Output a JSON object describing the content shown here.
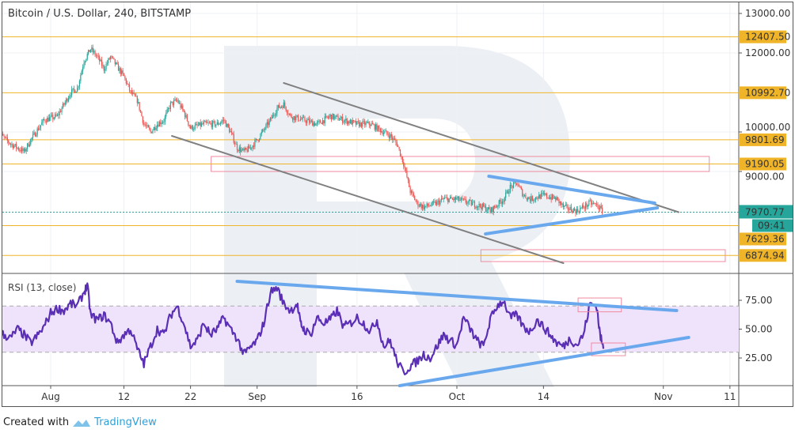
{
  "chart_data": {
    "type": "candlestick",
    "title": "Bitcoin / U.S. Dollar, 240, BITSTAMP",
    "price_axis": {
      "ticks": [
        "13000.00",
        "12000.00",
        "10000.00",
        "9000.00"
      ],
      "tick_values": [
        13000,
        12000,
        10000,
        9000
      ],
      "range": [
        6600,
        13300
      ]
    },
    "time_axis": {
      "ticks": [
        {
          "label": "Aug",
          "day": 0
        },
        {
          "label": "12",
          "day": 11
        },
        {
          "label": "22",
          "day": 21
        },
        {
          "label": "Sep",
          "day": 31
        },
        {
          "label": "16",
          "day": 46
        },
        {
          "label": "Oct",
          "day": 61
        },
        {
          "label": "14",
          "day": 74
        },
        {
          "label": "Nov",
          "day": 92
        },
        {
          "label": "11",
          "day": 102
        }
      ],
      "day0": "Aug 1"
    },
    "price_path": [
      [
        -8,
        10000
      ],
      [
        -6,
        9700
      ],
      [
        -4,
        9500
      ],
      [
        -3,
        9800
      ],
      [
        -1,
        10300
      ],
      [
        1,
        10400
      ],
      [
        3,
        11000
      ],
      [
        4,
        11100
      ],
      [
        5,
        11800
      ],
      [
        6,
        12100
      ],
      [
        7,
        11900
      ],
      [
        8,
        11600
      ],
      [
        9,
        11900
      ],
      [
        11,
        11400
      ],
      [
        12,
        11000
      ],
      [
        13,
        10800
      ],
      [
        14,
        10200
      ],
      [
        15,
        10000
      ],
      [
        16,
        10200
      ],
      [
        17,
        10300
      ],
      [
        18,
        10700
      ],
      [
        19,
        10800
      ],
      [
        20,
        10500
      ],
      [
        21,
        10100
      ],
      [
        23,
        10200
      ],
      [
        25,
        10200
      ],
      [
        26,
        10300
      ],
      [
        27,
        10000
      ],
      [
        28,
        9600
      ],
      [
        29,
        9500
      ],
      [
        30,
        9600
      ],
      [
        31,
        9800
      ],
      [
        33,
        10300
      ],
      [
        34,
        10600
      ],
      [
        35,
        10700
      ],
      [
        36,
        10400
      ],
      [
        38,
        10300
      ],
      [
        40,
        10200
      ],
      [
        42,
        10400
      ],
      [
        44,
        10300
      ],
      [
        46,
        10200
      ],
      [
        48,
        10200
      ],
      [
        50,
        10000
      ],
      [
        51,
        9900
      ],
      [
        52,
        9700
      ],
      [
        53,
        9200
      ],
      [
        54,
        8500
      ],
      [
        55,
        8200
      ],
      [
        56,
        8100
      ],
      [
        58,
        8200
      ],
      [
        59,
        8300
      ],
      [
        61,
        8300
      ],
      [
        63,
        8200
      ],
      [
        65,
        8100
      ],
      [
        66,
        8000
      ],
      [
        68,
        8300
      ],
      [
        69,
        8600
      ],
      [
        70,
        8700
      ],
      [
        71,
        8400
      ],
      [
        72,
        8300
      ],
      [
        74,
        8400
      ],
      [
        76,
        8300
      ],
      [
        77,
        8100
      ],
      [
        79,
        8000
      ],
      [
        80,
        8100
      ],
      [
        81,
        8200
      ],
      [
        82,
        8150
      ],
      [
        83,
        7970
      ]
    ],
    "levels": [
      {
        "label": "12407.50",
        "value": 12407.5
      },
      {
        "label": "10992.70",
        "value": 10992.7
      },
      {
        "label": "9801.69",
        "value": 9801.69
      },
      {
        "label": "9190.05",
        "value": 9190.05
      },
      {
        "label": "7629.36",
        "value": 7629.36
      },
      {
        "label": "6874.94",
        "value": 6874.94
      }
    ],
    "last_price": {
      "label": "7970.77",
      "value": 7970.77,
      "countdown": "09:41"
    },
    "trend_lines": [
      {
        "color": "#808080",
        "p1": [
          35,
          11240
        ],
        "p2": [
          94.3,
          7970
        ]
      },
      {
        "color": "#808080",
        "p1": [
          18.2,
          9900
        ],
        "p2": [
          77,
          6680
        ]
      },
      {
        "color": "#6aa8ee",
        "p1": [
          65.8,
          8880
        ],
        "p2": [
          90.7,
          8200
        ]
      },
      {
        "color": "#6aa8ee",
        "p1": [
          65.3,
          7420
        ],
        "p2": [
          91.1,
          8080
        ]
      }
    ],
    "zones": [
      {
        "d1": 24.1,
        "d2": 98.9,
        "p1": 9380,
        "p2": 9000
      },
      {
        "d1": 64.6,
        "d2": 101.3,
        "p1": 7020,
        "p2": 6720
      }
    ],
    "rsi": {
      "title": "RSI (13, close)",
      "ticks": [
        "75.00",
        "50.00",
        "25.00"
      ],
      "tick_values": [
        75,
        50,
        25
      ],
      "band": [
        30,
        70
      ],
      "path": [
        [
          -8,
          48
        ],
        [
          -7,
          45
        ],
        [
          -6,
          42
        ],
        [
          -5,
          50
        ],
        [
          -4,
          45
        ],
        [
          -3,
          38
        ],
        [
          -2,
          44
        ],
        [
          -1,
          52
        ],
        [
          0,
          64
        ],
        [
          1,
          68
        ],
        [
          2,
          66
        ],
        [
          3,
          72
        ],
        [
          4,
          70
        ],
        [
          5,
          82
        ],
        [
          5.5,
          88
        ],
        [
          6,
          62
        ],
        [
          7,
          58
        ],
        [
          8,
          62
        ],
        [
          9,
          55
        ],
        [
          10,
          38
        ],
        [
          11,
          45
        ],
        [
          12,
          50
        ],
        [
          13,
          33
        ],
        [
          14,
          20
        ],
        [
          15,
          35
        ],
        [
          16,
          50
        ],
        [
          17,
          45
        ],
        [
          18,
          62
        ],
        [
          19,
          70
        ],
        [
          20,
          55
        ],
        [
          21,
          35
        ],
        [
          22,
          40
        ],
        [
          23,
          55
        ],
        [
          24,
          45
        ],
        [
          25,
          50
        ],
        [
          26,
          60
        ],
        [
          27,
          50
        ],
        [
          28,
          42
        ],
        [
          29,
          28
        ],
        [
          30,
          34
        ],
        [
          31,
          40
        ],
        [
          32,
          55
        ],
        [
          33,
          82
        ],
        [
          34,
          86
        ],
        [
          35,
          72
        ],
        [
          36,
          66
        ],
        [
          37,
          72
        ],
        [
          37.5,
          55
        ],
        [
          38,
          50
        ],
        [
          39,
          45
        ],
        [
          40,
          60
        ],
        [
          41,
          55
        ],
        [
          42,
          58
        ],
        [
          43,
          66
        ],
        [
          44,
          52
        ],
        [
          45,
          55
        ],
        [
          46,
          60
        ],
        [
          47,
          55
        ],
        [
          48,
          48
        ],
        [
          49,
          58
        ],
        [
          50,
          35
        ],
        [
          51,
          40
        ],
        [
          52,
          22
        ],
        [
          53,
          12
        ],
        [
          54,
          18
        ],
        [
          55,
          22
        ],
        [
          56,
          28
        ],
        [
          57,
          25
        ],
        [
          58,
          35
        ],
        [
          59,
          45
        ],
        [
          60,
          40
        ],
        [
          61,
          36
        ],
        [
          62,
          60
        ],
        [
          63,
          50
        ],
        [
          64,
          40
        ],
        [
          65,
          35
        ],
        [
          66,
          58
        ],
        [
          67,
          70
        ],
        [
          68,
          75
        ],
        [
          69,
          60
        ],
        [
          70,
          62
        ],
        [
          71,
          52
        ],
        [
          72,
          48
        ],
        [
          73,
          58
        ],
        [
          74,
          52
        ],
        [
          75,
          45
        ],
        [
          76,
          38
        ],
        [
          77,
          35
        ],
        [
          78,
          42
        ],
        [
          79,
          36
        ],
        [
          80,
          45
        ],
        [
          81,
          72
        ],
        [
          82,
          70
        ],
        [
          82.5,
          45
        ],
        [
          83,
          33
        ]
      ],
      "trend_lines": [
        {
          "p1": [
            28,
            91.4
          ],
          "p2": [
            94,
            66.1
          ]
        },
        {
          "p1": [
            52.4,
            1
          ],
          "p2": [
            95.8,
            42.8
          ]
        }
      ],
      "zones": [
        {
          "d1": 79.2,
          "d2": 85.7,
          "v1": 77,
          "v2": 65
        },
        {
          "d1": 81.2,
          "d2": 86.3,
          "v1": 38,
          "v2": 27
        }
      ]
    },
    "colors": {
      "up": "#26a69a",
      "down": "#ef5350",
      "level": "#f0b429",
      "rsi": "#5b2fb5",
      "band": "#efe3fb",
      "zone": "#f08aa0",
      "last": "#26a69a"
    }
  },
  "footer": {
    "prefix": "Created with",
    "brand": "TradingView"
  }
}
